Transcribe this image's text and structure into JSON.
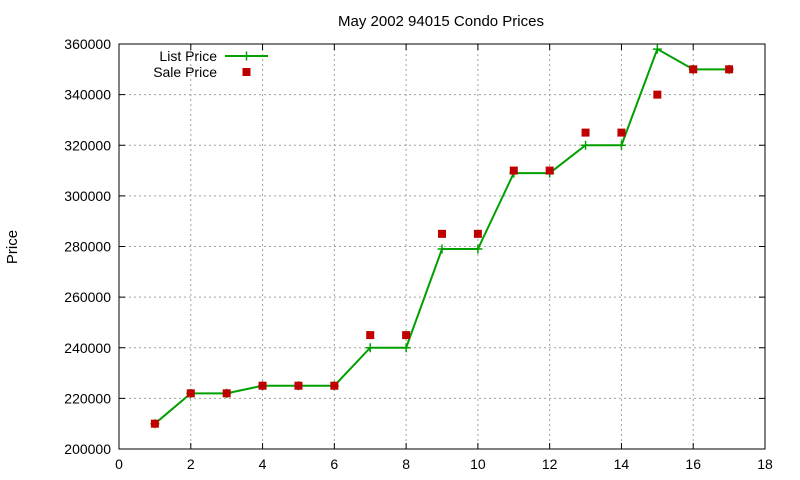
{
  "chart_data": {
    "type": "line",
    "title": "May 2002 94015 Condo Prices",
    "xlabel": "",
    "ylabel": "Price",
    "xlim": [
      0,
      18
    ],
    "ylim": [
      200000,
      360000
    ],
    "xticks": [
      0,
      2,
      4,
      6,
      8,
      10,
      12,
      14,
      16,
      18
    ],
    "yticks": [
      200000,
      220000,
      240000,
      260000,
      280000,
      300000,
      320000,
      340000,
      360000
    ],
    "grid": true,
    "legend_position": "top-left",
    "series": [
      {
        "name": "List Price",
        "style": "line-with-plus",
        "color": "#00a000",
        "x": [
          1,
          2,
          3,
          4,
          5,
          6,
          7,
          8,
          9,
          10,
          11,
          12,
          13,
          14,
          15,
          16,
          17
        ],
        "y": [
          210000,
          222000,
          222000,
          225000,
          225000,
          225000,
          240000,
          240000,
          279000,
          279000,
          309000,
          309000,
          320000,
          320000,
          358000,
          350000,
          350000
        ]
      },
      {
        "name": "Sale Price",
        "style": "square-points",
        "color": "#c00000",
        "x": [
          1,
          2,
          3,
          4,
          5,
          6,
          7,
          8,
          9,
          10,
          11,
          12,
          13,
          14,
          15,
          16,
          17
        ],
        "y": [
          210000,
          222000,
          222000,
          225000,
          225000,
          225000,
          245000,
          245000,
          285000,
          285000,
          310000,
          310000,
          325000,
          325000,
          340000,
          350000,
          350000
        ]
      }
    ]
  }
}
